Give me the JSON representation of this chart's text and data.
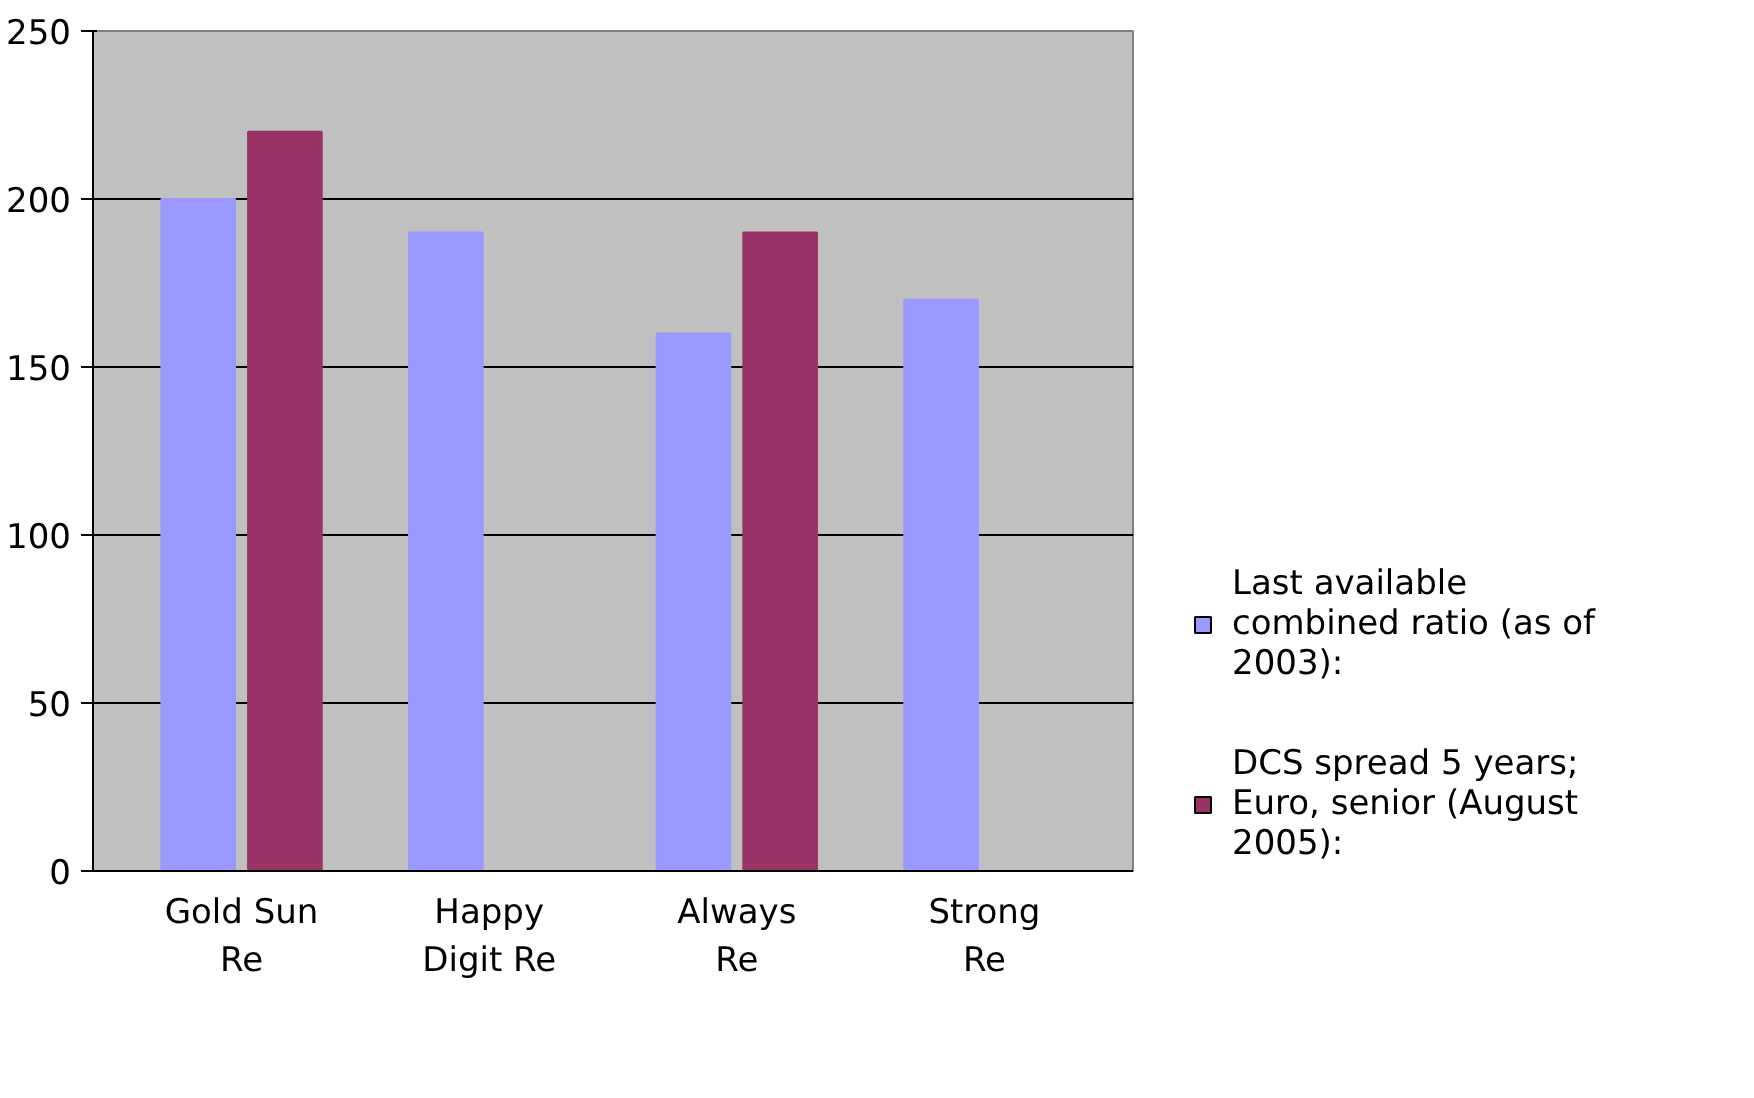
{
  "chart_data": {
    "type": "bar",
    "categories": [
      "Gold Sun Re",
      "Happy Digit Re",
      "Always Re",
      "Strong Re"
    ],
    "series": [
      {
        "name": "Last available combined ratio (as of 2003):",
        "color": "#9999ff",
        "values": [
          200,
          190,
          160,
          170
        ]
      },
      {
        "name": "DCS spread 5 years; Euro, senior (August 2005):",
        "color": "#993366",
        "values": [
          220,
          0,
          190,
          0
        ]
      }
    ],
    "ylim": [
      0,
      250
    ],
    "yticks": [
      0,
      50,
      100,
      150,
      200,
      250
    ],
    "grid": "y",
    "legend": "right"
  }
}
